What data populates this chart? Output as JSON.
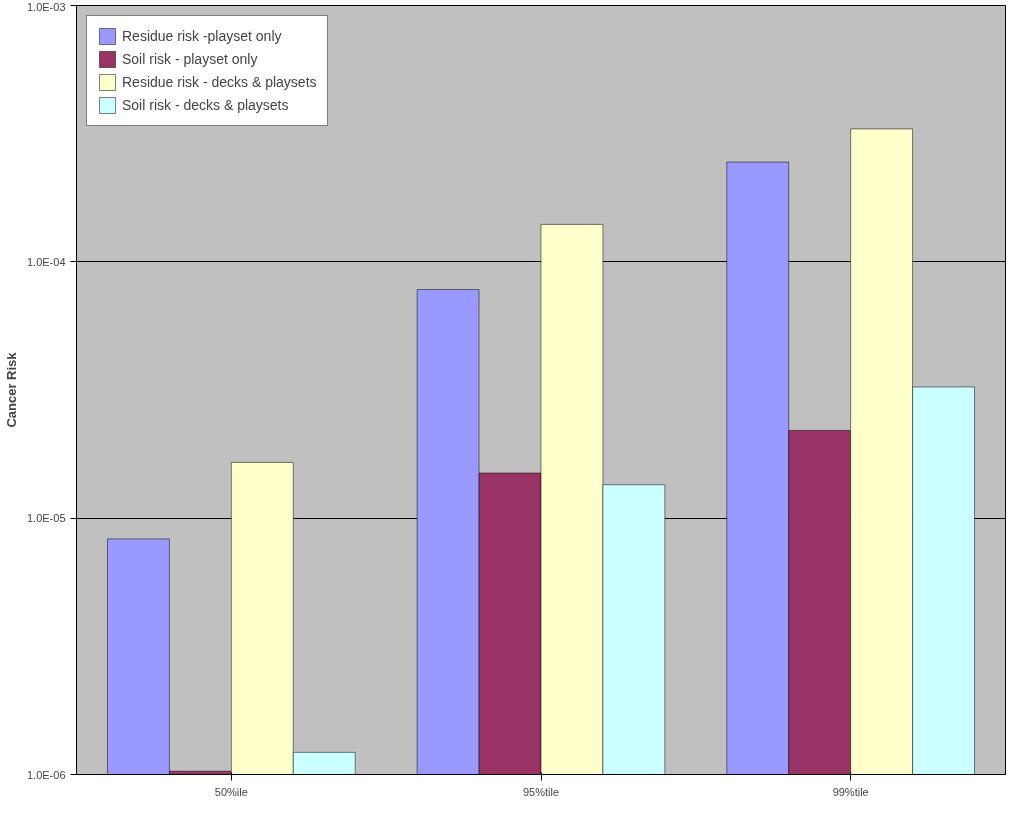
{
  "chart_data": {
    "type": "bar",
    "ylabel": "Cancer Risk",
    "categories": [
      "50%ile",
      "95%tile",
      "99%tile"
    ],
    "series": [
      {
        "name": "Residue risk -playset only",
        "color": "#9999ff",
        "values": [
          8.3e-06,
          7.8e-05,
          0.000245
        ]
      },
      {
        "name": "Soil risk - playset only",
        "color": "#993366",
        "values": [
          1.03e-06,
          1.5e-05,
          2.2e-05
        ]
      },
      {
        "name": "Residue risk - decks & playsets",
        "color": "#ffffcc",
        "values": [
          1.65e-05,
          0.00014,
          0.00033
        ]
      },
      {
        "name": "Soil risk - decks & playsets",
        "color": "#ccffff",
        "values": [
          1.22e-06,
          1.35e-05,
          3.25e-05
        ]
      }
    ],
    "log": "y",
    "ylim": [
      1e-06,
      0.001
    ],
    "yticks": [
      {
        "value": 1e-06,
        "label": "1.0E-06"
      },
      {
        "value": 1e-05,
        "label": "1.0E-05"
      },
      {
        "value": 0.0001,
        "label": "1.0E-04"
      },
      {
        "value": 0.001,
        "label": "1.0E-03"
      }
    ],
    "grid": "y",
    "legend": "top left"
  }
}
